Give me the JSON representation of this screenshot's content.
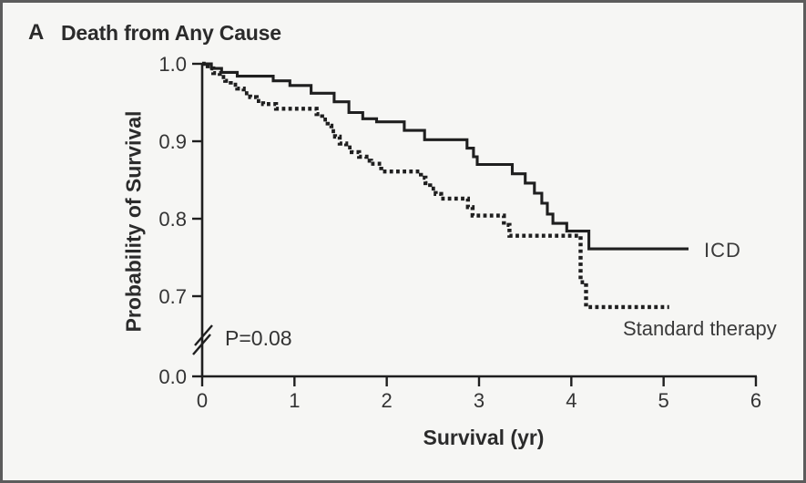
{
  "panel": {
    "label": "A",
    "title": "Death from Any Cause"
  },
  "colors": {
    "background": "#f6f6f4",
    "frame_border": "#5c5c5c",
    "line": "#1f1f1f",
    "text": "#2b2b2b"
  },
  "chart_data": {
    "type": "line",
    "subtype": "kaplan-meier-step",
    "title": "Death from Any Cause",
    "xlabel": "Survival (yr)",
    "ylabel": "Probability of Survival",
    "xlim": [
      0,
      6
    ],
    "ylim_displayed": [
      0.65,
      1.0
    ],
    "y_axis_break_to_zero": true,
    "grid": false,
    "legend_position": "inline-at-line-end",
    "x_ticks": [
      {
        "label": "0",
        "value": 0
      },
      {
        "label": "1",
        "value": 1
      },
      {
        "label": "2",
        "value": 2
      },
      {
        "label": "3",
        "value": 3
      },
      {
        "label": "4",
        "value": 4
      },
      {
        "label": "5",
        "value": 5
      },
      {
        "label": "6",
        "value": 6
      }
    ],
    "y_ticks": [
      {
        "label": "1.0",
        "value": 1.0
      },
      {
        "label": "0.9",
        "value": 0.9
      },
      {
        "label": "0.8",
        "value": 0.8
      },
      {
        "label": "0.7",
        "value": 0.7
      },
      {
        "label": "0.0",
        "value": 0.0
      }
    ],
    "annotations": [
      {
        "text": "P=0.08",
        "x": 0.22,
        "y": 0.665
      }
    ],
    "series": [
      {
        "name": "ICD",
        "line_style": "solid",
        "end_x": 5.27,
        "steps": [
          [
            0.0,
            1.0
          ],
          [
            0.1,
            0.994
          ],
          [
            0.21,
            0.989
          ],
          [
            0.38,
            0.984
          ],
          [
            0.77,
            0.978
          ],
          [
            0.95,
            0.972
          ],
          [
            1.18,
            0.962
          ],
          [
            1.43,
            0.951
          ],
          [
            1.59,
            0.937
          ],
          [
            1.74,
            0.929
          ],
          [
            1.89,
            0.925
          ],
          [
            2.19,
            0.914
          ],
          [
            2.41,
            0.902
          ],
          [
            2.87,
            0.891
          ],
          [
            2.94,
            0.88
          ],
          [
            2.98,
            0.87
          ],
          [
            3.36,
            0.858
          ],
          [
            3.5,
            0.846
          ],
          [
            3.6,
            0.833
          ],
          [
            3.68,
            0.82
          ],
          [
            3.74,
            0.806
          ],
          [
            3.8,
            0.794
          ],
          [
            3.95,
            0.784
          ],
          [
            4.19,
            0.761
          ]
        ]
      },
      {
        "name": "Standard therapy",
        "line_style": "dotted",
        "end_x": 5.06,
        "steps": [
          [
            0.0,
            1.0
          ],
          [
            0.06,
            0.994
          ],
          [
            0.12,
            0.988
          ],
          [
            0.19,
            0.983
          ],
          [
            0.25,
            0.978
          ],
          [
            0.31,
            0.973
          ],
          [
            0.38,
            0.968
          ],
          [
            0.45,
            0.962
          ],
          [
            0.52,
            0.957
          ],
          [
            0.59,
            0.952
          ],
          [
            0.66,
            0.948
          ],
          [
            0.8,
            0.942
          ],
          [
            1.24,
            0.935
          ],
          [
            1.3,
            0.928
          ],
          [
            1.36,
            0.92
          ],
          [
            1.4,
            0.913
          ],
          [
            1.44,
            0.906
          ],
          [
            1.49,
            0.897
          ],
          [
            1.56,
            0.892
          ],
          [
            1.62,
            0.886
          ],
          [
            1.7,
            0.88
          ],
          [
            1.78,
            0.875
          ],
          [
            1.83,
            0.871
          ],
          [
            1.94,
            0.861
          ],
          [
            2.37,
            0.853
          ],
          [
            2.42,
            0.846
          ],
          [
            2.47,
            0.839
          ],
          [
            2.53,
            0.832
          ],
          [
            2.59,
            0.826
          ],
          [
            2.88,
            0.815
          ],
          [
            2.93,
            0.804
          ],
          [
            3.27,
            0.792
          ],
          [
            3.33,
            0.778
          ],
          [
            4.1,
            0.718
          ],
          [
            4.16,
            0.686
          ]
        ]
      }
    ]
  }
}
